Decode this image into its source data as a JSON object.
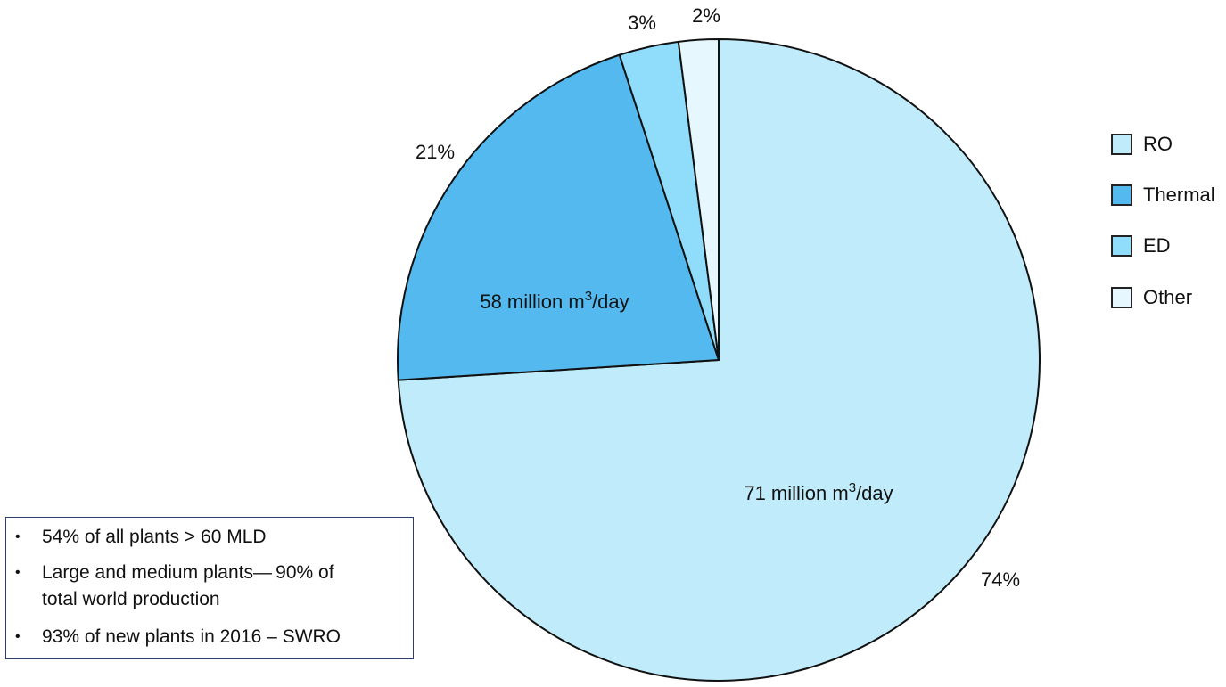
{
  "chart_data": {
    "type": "pie",
    "categories": [
      "RO",
      "Thermal",
      "ED",
      "Other"
    ],
    "values": [
      74,
      21,
      3,
      2
    ],
    "colors": [
      "#bfebfb",
      "#54b9ee",
      "#8fdcfb",
      "#e6f8fe"
    ],
    "value_labels": [
      "74%",
      "21%",
      "3%",
      "2%"
    ],
    "slice_annotations": {
      "RO": {
        "pre": "71 million m",
        "sup": "3",
        "post": "/day"
      },
      "Thermal": {
        "pre": "58 million m",
        "sup": "3",
        "post": "/day"
      }
    },
    "legend_position": "right",
    "start_angle": "12 o'clock",
    "direction": "clockwise"
  },
  "legend": {
    "items": [
      {
        "label": "RO",
        "color": "#bfebfb"
      },
      {
        "label": "Thermal",
        "color": "#54b9ee"
      },
      {
        "label": "ED",
        "color": "#8fdcfb"
      },
      {
        "label": "Other",
        "color": "#e6f8fe"
      }
    ]
  },
  "notes": {
    "items": [
      {
        "lines": [
          "54% of all plants > 60 MLD"
        ]
      },
      {
        "lines": [
          "Large and medium plants— 90% of",
          "total world production"
        ]
      },
      {
        "lines": [
          "93% of new plants in 2016 – SWRO"
        ]
      }
    ]
  }
}
